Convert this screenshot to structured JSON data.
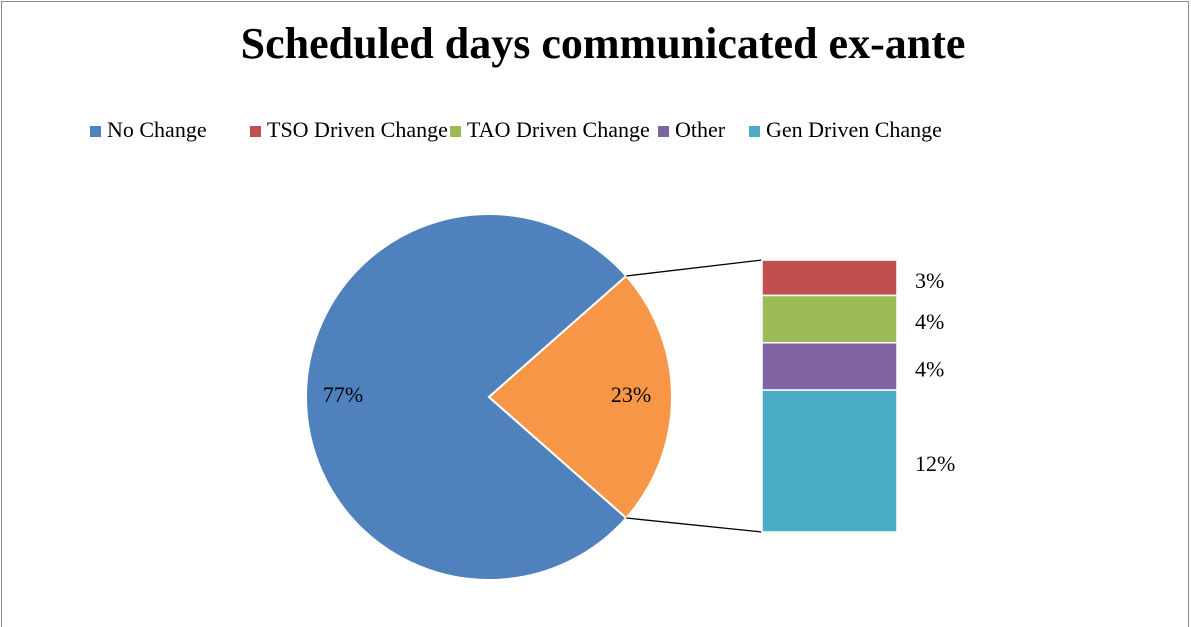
{
  "chart_data": {
    "type": "pie-of-bar",
    "title": "Scheduled days communicated ex-ante",
    "categories": [
      "No Change",
      "TSO Driven Change",
      "TAO Driven Change",
      "Other",
      "Gen Driven Change"
    ],
    "values": [
      77,
      3,
      4,
      4,
      12
    ],
    "value_labels": [
      "77%",
      "3%",
      "4%",
      "4%",
      "12%"
    ],
    "colors": [
      "#4f81bd",
      "#c0504d",
      "#9bbb59",
      "#8064a2",
      "#4bacc6"
    ],
    "combined": {
      "value": 23,
      "label": "23%",
      "color": "#f79646"
    },
    "legend": "top"
  }
}
